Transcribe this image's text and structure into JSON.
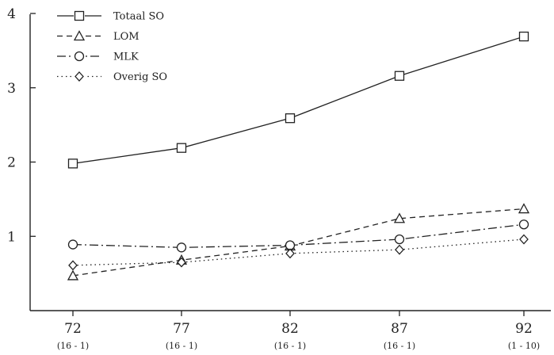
{
  "chart_data": {
    "type": "line",
    "categories": [
      "72",
      "77",
      "82",
      "87",
      "92"
    ],
    "category_sublabels": [
      "(16 - 1)",
      "(16 - 1)",
      "(16 - 1)",
      "(16 - 1)",
      "(1 - 10)"
    ],
    "ylim": [
      0,
      4
    ],
    "yticks": [
      "1",
      "2",
      "3",
      "4"
    ],
    "grid": false,
    "legend": "top-left",
    "series": [
      {
        "name": "Totaal SO",
        "values": [
          1.98,
          2.19,
          2.59,
          3.16,
          3.69
        ],
        "marker": "square",
        "line": "solid"
      },
      {
        "name": "LOM",
        "values": [
          0.47,
          0.68,
          0.87,
          1.24,
          1.37
        ],
        "marker": "triangle",
        "line": "dashed"
      },
      {
        "name": "MLK",
        "values": [
          0.89,
          0.85,
          0.88,
          0.96,
          1.16
        ],
        "marker": "circle",
        "line": "dashdot"
      },
      {
        "name": "Overig SO",
        "values": [
          0.61,
          0.65,
          0.77,
          0.82,
          0.96
        ],
        "marker": "diamond",
        "line": "dotted"
      }
    ]
  }
}
